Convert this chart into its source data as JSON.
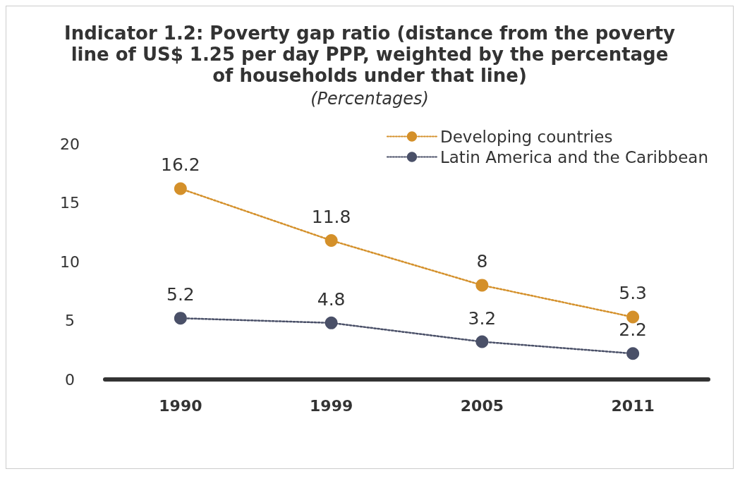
{
  "chart_data": {
    "type": "line",
    "title": "Indicator 1.2: Poverty gap ratio (distance from the poverty\nline of US$ 1.25 per day PPP, weighted by the percentage\nof households under that line)",
    "subtitle": "(Percentages)",
    "categories": [
      "1990",
      "1999",
      "2005",
      "2011"
    ],
    "series": [
      {
        "name": "Developing countries",
        "color": "#d4902a",
        "values": [
          16.2,
          11.8,
          8,
          5.3
        ]
      },
      {
        "name": "Latin America and the Caribbean",
        "color": "#4a5068",
        "values": [
          5.2,
          4.8,
          3.2,
          2.2
        ]
      }
    ],
    "ylim": [
      0,
      20
    ],
    "yticks": [
      0,
      5,
      10,
      15,
      20
    ],
    "grid": false,
    "legend": "top right",
    "marker": "circle",
    "line_style": "dotted",
    "data_labels": true
  }
}
